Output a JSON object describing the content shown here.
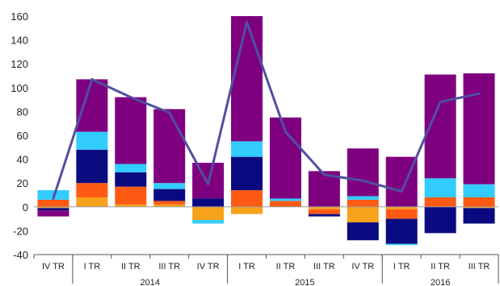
{
  "chart_data": {
    "type": "bar",
    "stacked": true,
    "categories": [
      "IV TR",
      "I TR",
      "II TR",
      "III TR",
      "IV TR",
      "I TR",
      "II TR",
      "III TR",
      "IV TR",
      "I TR",
      "II TR",
      "III TR"
    ],
    "year_groups": [
      {
        "label": "2014",
        "start": 1,
        "end": 4
      },
      {
        "label": "2015",
        "start": 5,
        "end": 8
      },
      {
        "label": "2016",
        "start": 9,
        "end": 11
      }
    ],
    "y_ticks": [
      "160",
      "140",
      "120",
      "100",
      "80",
      "60",
      "40",
      "20",
      "0",
      "-20",
      "-40"
    ],
    "ylim": [
      -40,
      160
    ],
    "grid": false,
    "legend": "none",
    "series": [
      {
        "color": "#f7a21b",
        "values": [
          -1,
          8,
          2,
          2,
          -11,
          -6,
          0,
          -2,
          -13,
          -2,
          0,
          -1
        ]
      },
      {
        "color": "#ff5a14",
        "values": [
          6,
          12,
          15,
          3,
          0,
          14,
          5,
          -4,
          6,
          -8,
          8,
          8
        ]
      },
      {
        "color": "#0a0a80",
        "values": [
          -2,
          28,
          12,
          10,
          7,
          28,
          0,
          -2,
          -15,
          -21,
          -22,
          -13
        ]
      },
      {
        "color": "#33ccff",
        "values": [
          8,
          15,
          7,
          5,
          -3,
          13,
          2,
          0,
          3,
          -1,
          16,
          11
        ]
      },
      {
        "color": "#7f007f",
        "values": [
          -5,
          44,
          56,
          62,
          30,
          105,
          68,
          30,
          40,
          42,
          87,
          93
        ]
      }
    ],
    "line": {
      "color": "#5050a0",
      "values": [
        7,
        107,
        92,
        79,
        19,
        155,
        63,
        27,
        22,
        13,
        88,
        95
      ]
    }
  }
}
